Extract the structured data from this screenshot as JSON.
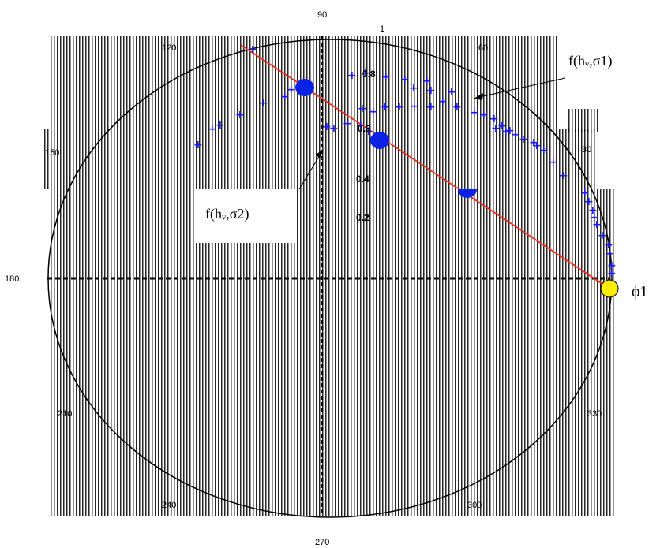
{
  "angle_labels": {
    "a90": "90",
    "a60": "60",
    "a30": "30",
    "a120": "120",
    "a150": "150",
    "a180": "180",
    "a210": "210",
    "a240": "240",
    "a270": "270",
    "a300": "300",
    "a330": "330"
  },
  "radial_labels": {
    "r1": "1",
    "r08": "0.8",
    "r06": "0.6",
    "r04": "0.4",
    "r02": "0.2"
  },
  "annotations": {
    "sigma1": "f(hᵥ,σ1)",
    "sigma2": "f(hᵥ,σ2)",
    "phi": "ϕ1"
  },
  "colors": {
    "hatch": "#000000",
    "curve_points": "#1a1aff",
    "dots": "#0a22e6",
    "line": "#ee2a1a",
    "phi_point": "#ffee00"
  },
  "markers": {
    "glyph": "+"
  }
}
